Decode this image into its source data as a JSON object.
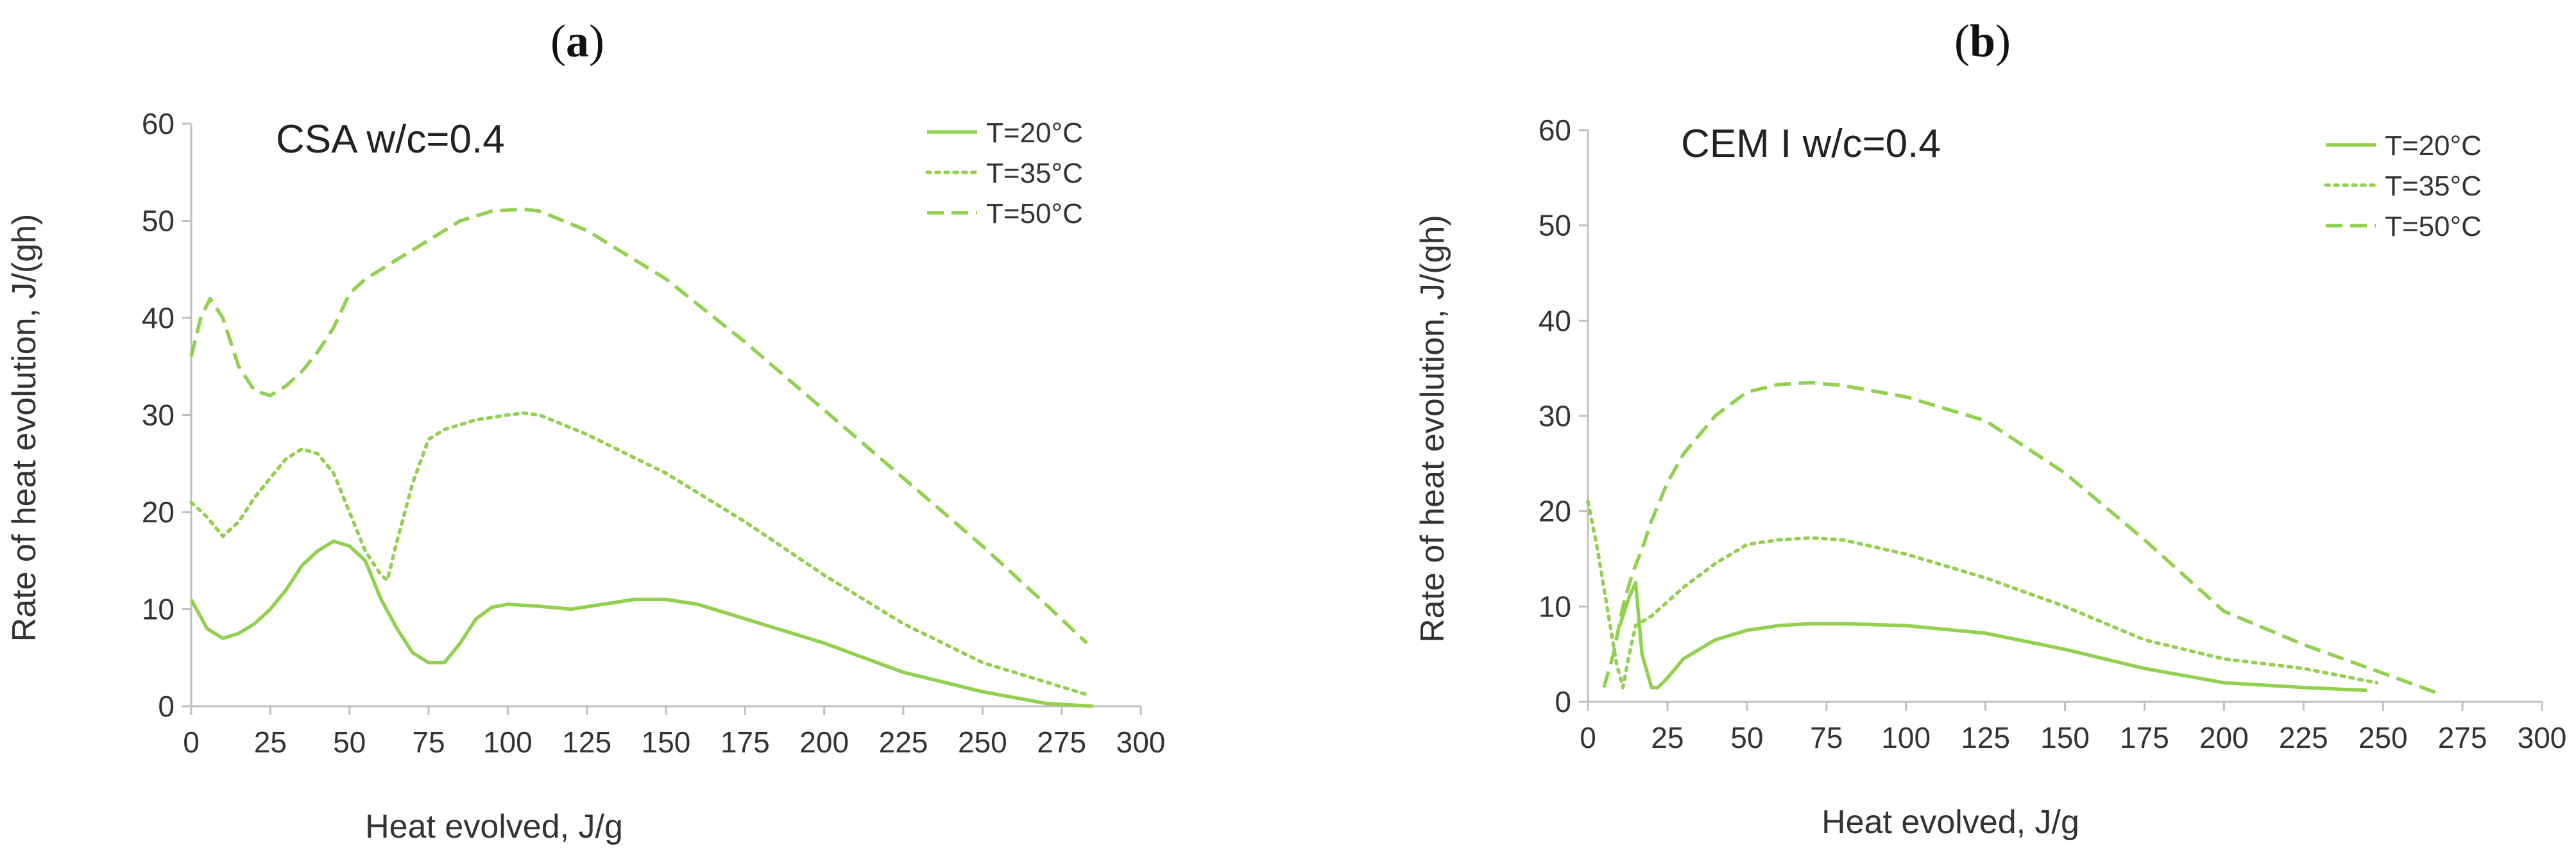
{
  "figure": {
    "panels": [
      {
        "label_open": "(",
        "label_letter": "a",
        "label_close": ")"
      },
      {
        "label_open": "(",
        "label_letter": "b",
        "label_close": ")"
      }
    ]
  },
  "colors": {
    "series": "#92d050",
    "axis": "#bfbfbf",
    "text": "#333333"
  },
  "chart_data": [
    {
      "type": "line",
      "panel": "(a)",
      "title": "CSA w/c=0.4",
      "xlabel": "Heat evolved, J/g",
      "ylabel": "Rate of heat evolution, J/(gh)",
      "xlim": [
        0,
        300
      ],
      "ylim": [
        0,
        60
      ],
      "xticks": [
        0,
        25,
        50,
        75,
        100,
        125,
        150,
        175,
        200,
        225,
        250,
        275,
        300
      ],
      "yticks": [
        0,
        10,
        20,
        30,
        40,
        50,
        60
      ],
      "legend_position": "top-right",
      "series": [
        {
          "name": "T=20°C",
          "style": "solid",
          "x": [
            0,
            5,
            10,
            15,
            20,
            25,
            30,
            35,
            40,
            45,
            50,
            55,
            60,
            65,
            70,
            75,
            80,
            85,
            90,
            95,
            100,
            110,
            120,
            130,
            140,
            150,
            160,
            175,
            200,
            225,
            250,
            270,
            285
          ],
          "y": [
            11,
            8,
            7,
            7.5,
            8.5,
            10,
            12,
            14.5,
            16,
            17,
            16.5,
            15,
            11,
            8,
            5.5,
            4.5,
            4.5,
            6.5,
            9,
            10.2,
            10.5,
            10.3,
            10,
            10.5,
            11,
            11,
            10.5,
            9,
            6.5,
            3.5,
            1.5,
            0.3,
            0
          ]
        },
        {
          "name": "T=35°C",
          "style": "dotted",
          "x": [
            0,
            5,
            10,
            15,
            20,
            25,
            30,
            35,
            40,
            45,
            50,
            55,
            60,
            62,
            65,
            70,
            75,
            80,
            90,
            100,
            105,
            110,
            125,
            150,
            175,
            200,
            225,
            250,
            270,
            283
          ],
          "y": [
            21,
            19.5,
            17.5,
            19,
            21.5,
            23.5,
            25.5,
            26.5,
            26,
            24,
            20,
            16,
            13.5,
            13,
            17,
            23,
            27.5,
            28.5,
            29.5,
            30,
            30.2,
            30,
            28,
            24,
            19,
            13.5,
            8.5,
            4.5,
            2.5,
            1.2
          ]
        },
        {
          "name": "T=50°C",
          "style": "dashed",
          "x": [
            0,
            3,
            6,
            10,
            15,
            20,
            25,
            30,
            35,
            40,
            45,
            50,
            55,
            60,
            65,
            75,
            85,
            95,
            105,
            110,
            125,
            150,
            175,
            200,
            225,
            250,
            270,
            283
          ],
          "y": [
            36,
            40,
            42,
            40,
            35,
            32.5,
            32,
            33,
            34.5,
            36.5,
            39,
            42.5,
            44,
            45,
            46,
            48,
            50,
            51,
            51.2,
            51,
            49,
            44,
            37.5,
            30.5,
            23.5,
            16.5,
            10.5,
            6.5
          ]
        }
      ]
    },
    {
      "type": "line",
      "panel": "(b)",
      "title": "CEM I w/c=0.4",
      "xlabel": "Heat evolved, J/g",
      "ylabel": "Rate of heat evolution, J/(gh)",
      "xlim": [
        0,
        300
      ],
      "ylim": [
        0,
        60
      ],
      "xticks": [
        0,
        25,
        50,
        75,
        100,
        125,
        150,
        175,
        200,
        225,
        250,
        275,
        300
      ],
      "yticks": [
        0,
        10,
        20,
        30,
        40,
        50,
        60
      ],
      "legend_position": "top-right",
      "series": [
        {
          "name": "T=20°C",
          "style": "solid",
          "x": [
            10,
            13,
            15,
            17,
            20,
            22,
            25,
            30,
            40,
            50,
            60,
            70,
            80,
            100,
            125,
            150,
            175,
            200,
            225,
            245
          ],
          "y": [
            8,
            11,
            12.5,
            5,
            1.5,
            1.5,
            2.5,
            4.5,
            6.5,
            7.5,
            8,
            8.2,
            8.2,
            8,
            7.2,
            5.5,
            3.5,
            2,
            1.5,
            1.2
          ]
        },
        {
          "name": "T=35°C",
          "style": "dotted",
          "x": [
            0,
            3,
            6,
            9,
            11,
            13,
            15,
            20,
            30,
            40,
            50,
            60,
            70,
            80,
            100,
            125,
            150,
            175,
            200,
            225,
            248
          ],
          "y": [
            21,
            16,
            10,
            4,
            1.5,
            5,
            8,
            9,
            12,
            14.5,
            16.5,
            17,
            17.2,
            17,
            15.5,
            13,
            10,
            6.5,
            4.5,
            3.5,
            2
          ]
        },
        {
          "name": "T=50°C",
          "style": "dashed",
          "x": [
            5,
            8,
            11,
            14,
            17,
            20,
            25,
            30,
            40,
            50,
            60,
            70,
            80,
            100,
            125,
            150,
            175,
            200,
            225,
            250,
            268
          ],
          "y": [
            1.5,
            5,
            10,
            13.5,
            16,
            19,
            23,
            26,
            30,
            32.5,
            33.3,
            33.5,
            33.2,
            32,
            29.5,
            24,
            17,
            9.5,
            6,
            3,
            0.8
          ]
        }
      ]
    }
  ]
}
